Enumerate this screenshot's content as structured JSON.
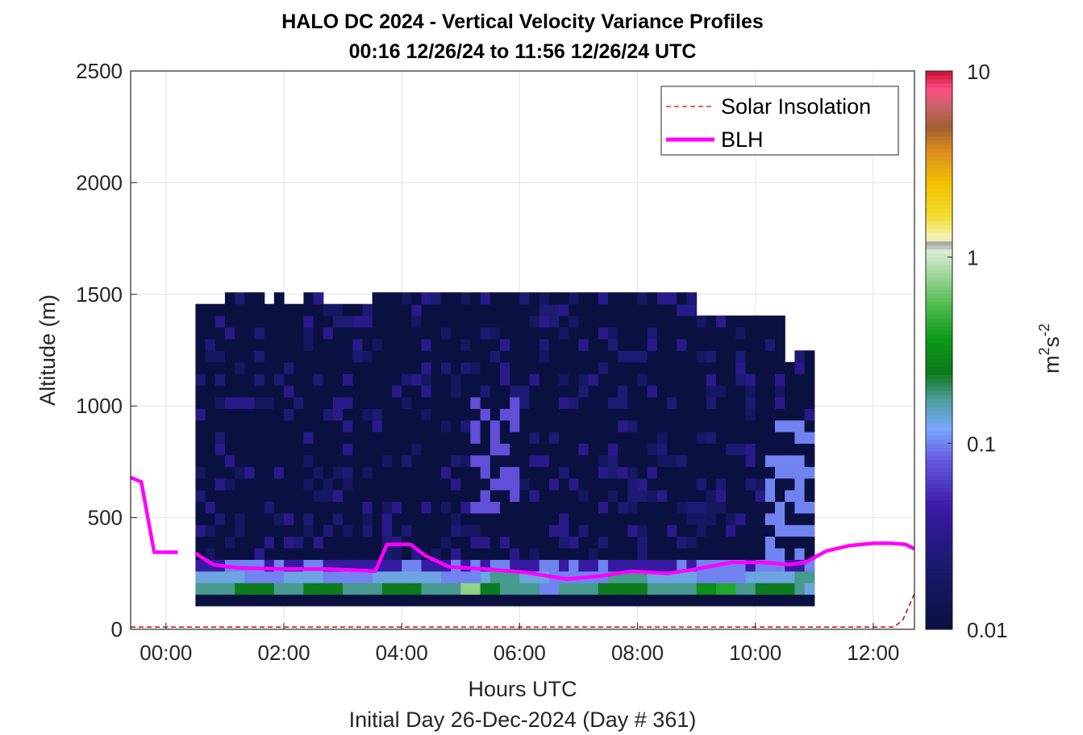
{
  "chart_data": {
    "type": "heatmap",
    "title_line1": "HALO DC 2024 - Vertical Velocity Variance Profiles",
    "title_line2": "00:16 12/26/24 to 11:56 12/26/24  UTC",
    "xlabel": "Hours UTC",
    "xlabel_sub": "Initial Day 26-Dec-2024 (Day # 361)",
    "ylabel": "Altitude (m)",
    "xlim_hours": [
      -0.6,
      12.7
    ],
    "ylim": [
      0,
      2500
    ],
    "x_ticks": [
      {
        "value": 0,
        "label": "00:00"
      },
      {
        "value": 2,
        "label": "02:00"
      },
      {
        "value": 4,
        "label": "04:00"
      },
      {
        "value": 6,
        "label": "06:00"
      },
      {
        "value": 8,
        "label": "08:00"
      },
      {
        "value": 10,
        "label": "10:00"
      },
      {
        "value": 12,
        "label": "12:00"
      }
    ],
    "y_ticks": [
      {
        "value": 0,
        "label": "0"
      },
      {
        "value": 500,
        "label": "500"
      },
      {
        "value": 1000,
        "label": "1000"
      },
      {
        "value": 1500,
        "label": "1500"
      },
      {
        "value": 2000,
        "label": "2000"
      },
      {
        "value": 2500,
        "label": "2500"
      }
    ],
    "grid": true,
    "legend_position": "top-right",
    "legend": [
      {
        "label": "Solar Insolation",
        "color": "#cc0000",
        "style": "dashed"
      },
      {
        "label": "BLH",
        "color": "#ff00ff",
        "style": "solid"
      }
    ],
    "colorbar": {
      "scale": "log",
      "range": [
        0.01,
        10
      ],
      "label_base": "m",
      "label_sup1": "2",
      "label_mid": "s",
      "label_sup2": "-2",
      "ticks": [
        {
          "value": 10,
          "label": "10"
        },
        {
          "value": 1,
          "label": "1"
        },
        {
          "value": 0.1,
          "label": "0.1"
        },
        {
          "value": 0.01,
          "label": "0.01"
        }
      ]
    },
    "grid_meta": {
      "first_hour": 0.5,
      "bin_hours": 0.166667,
      "first_altitude": 105,
      "bin_altitude": 52
    },
    "variance_rows": [
      "444444444444444444444444444444444444444444444444444444444444444444444444444444444444444444444444444444444444444444444444444444444444444444444444444444444444444444444444444444444444444444444444444444444444444444444444444444444444444444444444444444444444444444444444444444444444444444444",
      "AAAABBBBAAABBBBAAAABBBBAAAAFFBBAAAA88AAAABBBBBAAAAACCDDAABBBBA9AAAABBBBAAAAABBBBAA",
      "999998888999988888999999988889AAA999888888AAAA999998888899999AAA99999888889CC9FFA99"
    ],
    "blh_hours": [
      -0.6,
      -0.42,
      -0.2,
      0.2,
      0.5,
      0.8,
      1.2,
      2.0,
      2.7,
      3.2,
      3.55,
      3.75,
      4.15,
      4.4,
      4.8,
      5.4,
      6.1,
      6.8,
      7.4,
      7.9,
      8.5,
      9.0,
      9.6,
      10.1,
      10.6,
      10.85,
      11.2,
      11.6,
      12.0,
      12.3,
      12.55,
      12.7
    ],
    "blh_meters": [
      680,
      660,
      345,
      345,
      340,
      290,
      275,
      270,
      270,
      265,
      260,
      380,
      380,
      330,
      280,
      270,
      255,
      225,
      240,
      260,
      250,
      270,
      300,
      300,
      290,
      300,
      350,
      375,
      385,
      385,
      380,
      360
    ],
    "solar_hours": [
      -0.6,
      12.35,
      12.5,
      12.7
    ],
    "solar_meters": [
      10,
      10,
      40,
      160
    ]
  }
}
